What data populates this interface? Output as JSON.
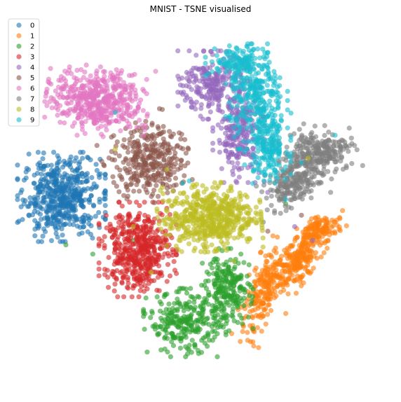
{
  "chart_data": {
    "type": "scatter",
    "title": "MNIST - TSNE visualised",
    "xlabel": "",
    "ylabel": "",
    "axes_visible": false,
    "grid": false,
    "legend_position": "top-left",
    "xlim": [
      -80,
      80
    ],
    "ylim": [
      -80,
      80
    ],
    "marker_alpha": 0.6,
    "series": [
      {
        "name": "0",
        "color": "#1f77b4",
        "clusters": [
          {
            "cx": -62,
            "cy": 3,
            "sx": 8.5,
            "sy": 8.5,
            "n": 520
          }
        ],
        "strays": [
          [
            -70,
            15
          ],
          [
            -52,
            -10
          ],
          [
            -58,
            18
          ],
          [
            -45,
            2
          ]
        ]
      },
      {
        "name": "1",
        "color": "#ff7f0e",
        "clusters": [
          {
            "cx": 45,
            "cy": -23,
            "sx": 9,
            "sy": 3.2,
            "rot": 55,
            "n": 260
          },
          {
            "cx": 28,
            "cy": -37,
            "sx": 11,
            "sy": 3.4,
            "rot": 72,
            "n": 200
          },
          {
            "cx": 54,
            "cy": -11,
            "sx": 5,
            "sy": 2.5,
            "rot": 20,
            "n": 90
          }
        ],
        "strays": [
          [
            24,
            -56
          ],
          [
            62,
            -6
          ],
          [
            38,
            -48
          ],
          [
            48,
            -30
          ]
        ]
      },
      {
        "name": "2",
        "color": "#2ca02c",
        "clusters": [
          {
            "cx": -7,
            "cy": -52,
            "sx": 8,
            "sy": 6.5,
            "n": 260
          },
          {
            "cx": 12,
            "cy": -38,
            "sx": 5,
            "sy": 8,
            "n": 230
          }
        ],
        "strays": [
          [
            -48,
            -22
          ],
          [
            -60,
            -18
          ],
          [
            38,
            0
          ],
          [
            52,
            22
          ],
          [
            18,
            -22
          ],
          [
            -30,
            -16
          ]
        ]
      },
      {
        "name": "3",
        "color": "#d62728",
        "clusters": [
          {
            "cx": -28,
            "cy": -20,
            "sx": 7.5,
            "sy": 9,
            "n": 480
          }
        ],
        "strays": [
          [
            -15,
            -2
          ],
          [
            28,
            38
          ],
          [
            5,
            -12
          ],
          [
            -40,
            -10
          ]
        ]
      },
      {
        "name": "4",
        "color": "#9467bd",
        "clusters": [
          {
            "cx": 6,
            "cy": 52,
            "sx": 7,
            "sy": 6.5,
            "n": 240
          },
          {
            "cx": 17,
            "cy": 30,
            "sx": 5,
            "sy": 9,
            "n": 230
          }
        ],
        "strays": [
          [
            42,
            -10
          ],
          [
            -8,
            48
          ],
          [
            30,
            5
          ],
          [
            50,
            -16
          ]
        ]
      },
      {
        "name": "5",
        "color": "#8c564b",
        "clusters": [
          {
            "cx": -23,
            "cy": 19,
            "sx": 8,
            "sy": 7.5,
            "rot": 30,
            "n": 330
          }
        ],
        "strays": [
          [
            12,
            -8
          ],
          [
            -34,
            28
          ],
          [
            30,
            -12
          ],
          [
            45,
            -5
          ]
        ]
      },
      {
        "name": "6",
        "color": "#e377c2",
        "clusters": [
          {
            "cx": -46,
            "cy": 45,
            "sx": 10,
            "sy": 6.5,
            "rot": -10,
            "n": 500
          }
        ],
        "strays": [
          [
            -30,
            52
          ],
          [
            -55,
            30
          ],
          [
            -20,
            58
          ]
        ]
      },
      {
        "name": "7",
        "color": "#7f7f7f",
        "clusters": [
          {
            "cx": 52,
            "cy": 22,
            "sx": 7.5,
            "sy": 5.5,
            "rot": 20,
            "n": 280
          },
          {
            "cx": 40,
            "cy": 8,
            "sx": 6,
            "sy": 4,
            "rot": 25,
            "n": 160
          }
        ],
        "strays": [
          [
            40,
            30
          ],
          [
            28,
            -8
          ],
          [
            58,
            5
          ],
          [
            46,
            35
          ],
          [
            33,
            -4
          ]
        ]
      },
      {
        "name": "8",
        "color": "#bcbd22",
        "clusters": [
          {
            "cx": 4,
            "cy": -6,
            "sx": 10,
            "sy": 6.5,
            "rot": 5,
            "n": 560
          }
        ],
        "strays": [
          [
            -38,
            24
          ],
          [
            -30,
            -10
          ],
          [
            -15,
            15
          ],
          [
            48,
            20
          ],
          [
            15,
            -25
          ],
          [
            -22,
            -30
          ],
          [
            5,
            -18
          ]
        ]
      },
      {
        "name": "9",
        "color": "#17becf",
        "clusters": [
          {
            "cx": 25,
            "cy": 47,
            "sx": 6,
            "sy": 10,
            "n": 280
          },
          {
            "cx": 30,
            "cy": 25,
            "sx": 4.5,
            "sy": 7,
            "n": 190
          },
          {
            "cx": 16,
            "cy": 62,
            "sx": 6,
            "sy": 3,
            "n": 110
          }
        ],
        "strays": [
          [
            -5,
            10
          ],
          [
            -8,
            9
          ],
          [
            38,
            2
          ],
          [
            -38,
            40
          ],
          [
            45,
            18
          ],
          [
            60,
            30
          ]
        ]
      }
    ]
  }
}
